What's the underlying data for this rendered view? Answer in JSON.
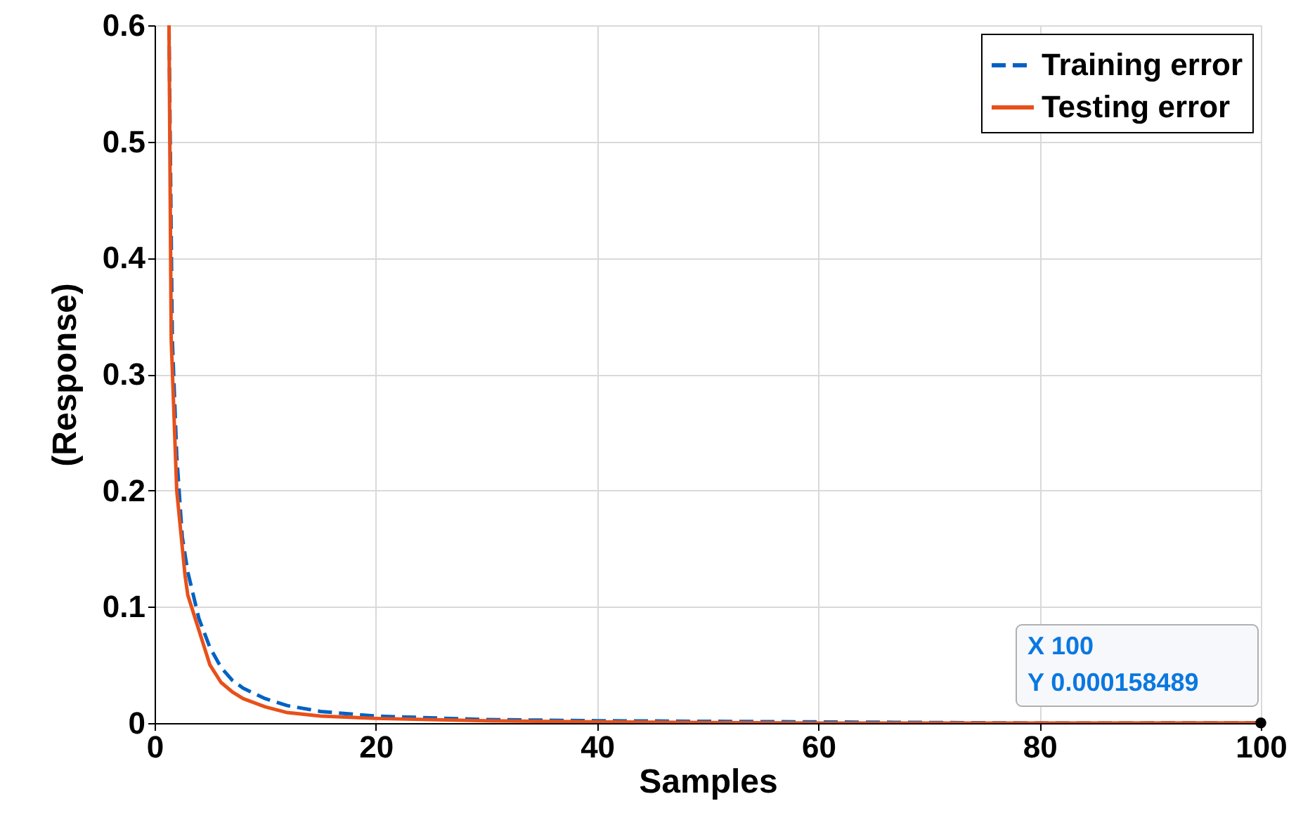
{
  "chart_data": {
    "type": "line",
    "xlabel": "Samples",
    "ylabel": "(Response)",
    "xlim": [
      0,
      100
    ],
    "ylim": [
      0,
      0.6
    ],
    "xticks": [
      0,
      20,
      40,
      60,
      80,
      100
    ],
    "yticks": [
      {
        "value": 0,
        "label": "0"
      },
      0.1,
      0.2,
      0.3,
      0.4,
      0.5,
      0.6
    ],
    "grid": true,
    "legend": "top right",
    "series": [
      {
        "name": "Training error",
        "color": "#0062c4",
        "line_style": "dashed",
        "x": [
          1.3,
          1.6,
          2,
          2.5,
          3,
          4,
          5,
          6,
          7,
          8,
          10,
          12,
          15,
          20,
          30,
          40,
          60,
          80,
          100
        ],
        "values": [
          0.6,
          0.33,
          0.23,
          0.16,
          0.13,
          0.09,
          0.065,
          0.048,
          0.037,
          0.03,
          0.021,
          0.015,
          0.01,
          0.006,
          0.003,
          0.002,
          0.001,
          0.0,
          0.000158489
        ]
      },
      {
        "name": "Testing error",
        "color": "#e8501a",
        "line_style": "solid",
        "x": [
          1.3,
          1.5,
          2,
          2.75,
          3,
          4,
          5,
          6,
          7,
          8,
          10,
          12,
          15,
          20,
          30,
          40,
          60,
          80,
          100
        ],
        "values": [
          0.6,
          0.33,
          0.2,
          0.127,
          0.11,
          0.08,
          0.05,
          0.035,
          0.027,
          0.021,
          0.014,
          0.009,
          0.006,
          0.004,
          0.002,
          0.001,
          0.0,
          0.0,
          0.000158489
        ]
      },
      {
        "type": "scatter",
        "color": "#000000",
        "marker": "circle",
        "x": [
          100
        ],
        "values": [
          0.000158489
        ]
      }
    ],
    "annotations": [
      "X 100",
      "Y 0.000158489"
    ]
  }
}
